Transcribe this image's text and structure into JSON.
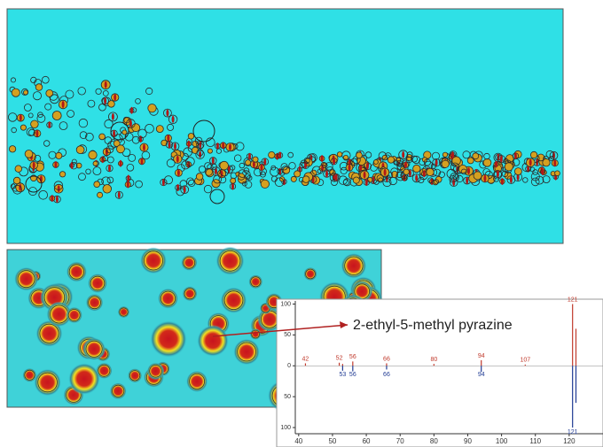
{
  "chart_data": {
    "type": "mirror-stem",
    "annotation": "2-ethyl-5-methyl pyrazine",
    "xlim": [
      39,
      130
    ],
    "xticks": [
      40,
      50,
      60,
      70,
      80,
      90,
      100,
      110,
      120
    ],
    "ylim": [
      -110,
      105
    ],
    "yticks": [
      100,
      50,
      0,
      {
        "value": -50,
        "label": "50"
      },
      {
        "value": -100,
        "label": "100"
      }
    ],
    "series": [
      {
        "color": "#c0392b",
        "x": [
          42,
          52,
          53,
          56,
          66,
          80,
          94,
          107,
          121,
          122
        ],
        "values": [
          4,
          5,
          3,
          7,
          4,
          3,
          9,
          2,
          100,
          60
        ],
        "peak_labels": [
          "42",
          "52",
          null,
          "56",
          "66",
          "80",
          "94",
          "107",
          "121",
          null
        ]
      },
      {
        "color": "#1f3a93",
        "x": [
          53,
          56,
          66,
          94,
          121,
          122
        ],
        "values": [
          -8,
          -9,
          -6,
          -10,
          -100,
          -60
        ],
        "peak_labels": [
          "53",
          "56",
          "66",
          "94",
          "121",
          null
        ]
      }
    ]
  }
}
